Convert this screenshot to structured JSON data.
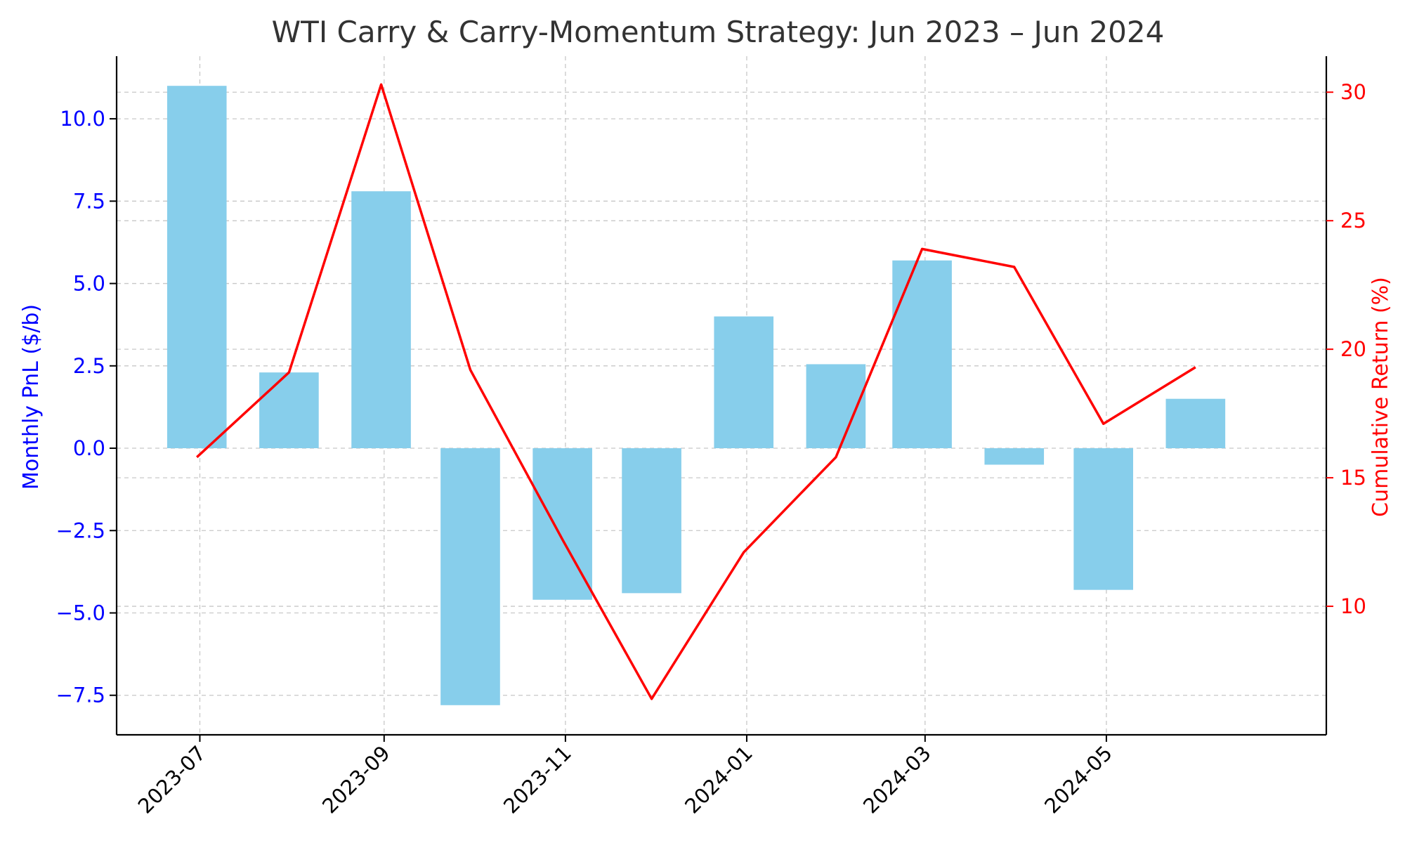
{
  "chart_data": {
    "type": "bar",
    "title": "WTI Carry & Carry-Momentum Strategy: Jun 2023 – Jun 2024",
    "xlabel": "",
    "x_tick_labels": [
      "2023-07",
      "2023-09",
      "2023-11",
      "2024-01",
      "2024-03",
      "2024-05"
    ],
    "x_tick_dates": [
      "2023-07-01",
      "2023-09-01",
      "2023-11-01",
      "2024-01-01",
      "2024-03-01",
      "2024-05-01"
    ],
    "x_range": [
      "2023-06-03",
      "2024-07-14"
    ],
    "dates": [
      "2023-06-30",
      "2023-07-31",
      "2023-08-31",
      "2023-09-30",
      "2023-10-31",
      "2023-11-30",
      "2023-12-31",
      "2024-01-31",
      "2024-02-29",
      "2024-03-31",
      "2024-04-30",
      "2024-05-31"
    ],
    "bar_width_days": 20,
    "left_axis": {
      "label": "Monthly PnL ($/b)",
      "color": "#0000ff",
      "ylim": [
        -8.7,
        11.9
      ],
      "ticks": [
        10.0,
        7.5,
        5.0,
        2.5,
        0.0,
        -2.5,
        -5.0,
        -7.5
      ],
      "tick_labels": [
        "10.0",
        "7.5",
        "5.0",
        "2.5",
        "0.0",
        "−2.5",
        "−5.0",
        "−7.5"
      ]
    },
    "right_axis": {
      "label": "Cumulative Return (%)",
      "color": "#ff0000",
      "ylim": [
        5.0,
        31.4
      ],
      "ticks": [
        30,
        25,
        20,
        15,
        10
      ],
      "tick_labels": [
        "30",
        "25",
        "20",
        "15",
        "10"
      ]
    },
    "series": [
      {
        "name": "Monthly PnL",
        "type": "bar",
        "axis": "left",
        "color": "#87ceeb",
        "values": [
          11.0,
          2.3,
          7.8,
          -7.8,
          -4.6,
          -4.4,
          4.0,
          2.55,
          5.7,
          -0.5,
          -4.3,
          1.5
        ]
      },
      {
        "name": "Cumulative Return",
        "type": "line",
        "axis": "right",
        "color": "#ff0000",
        "values": [
          15.8,
          19.1,
          30.3,
          19.2,
          12.6,
          6.4,
          12.1,
          15.8,
          23.9,
          23.2,
          17.1,
          19.3
        ]
      }
    ],
    "grid": true,
    "legend": "none"
  }
}
